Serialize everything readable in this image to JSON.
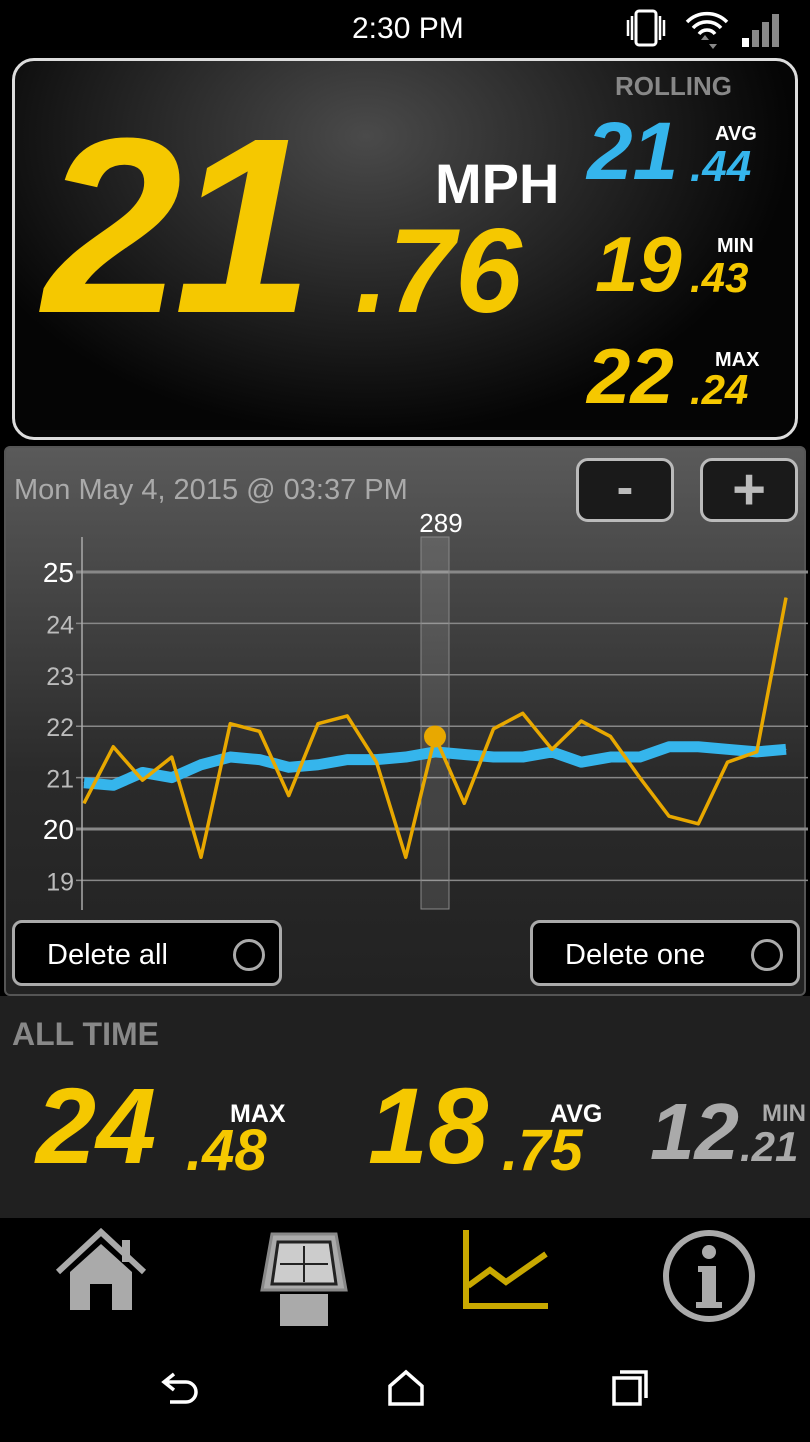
{
  "status_bar": {
    "time": "2:30 PM",
    "icons": [
      "vibrate-icon",
      "wifi-icon",
      "signal-icon"
    ]
  },
  "speed": {
    "whole": "21",
    "decimal": ".76",
    "unit": "MPH"
  },
  "rolling": {
    "title": "ROLLING",
    "avg": {
      "label": "AVG",
      "whole": "21",
      "decimal": ".44"
    },
    "min": {
      "label": "MIN",
      "whole": "19",
      "decimal": ".43"
    },
    "max": {
      "label": "MAX",
      "whole": "22",
      "decimal": ".24"
    }
  },
  "graph": {
    "timestamp": "Mon May 4, 2015 @ 03:37 PM",
    "zoom_out": "-",
    "zoom_in": "+",
    "delete_all": "Delete all",
    "delete_one": "Delete one"
  },
  "chart_data": {
    "type": "line",
    "ylim": [
      18.5,
      25.7
    ],
    "yticks": [
      "19",
      "20",
      "21",
      "22",
      "23",
      "24",
      "25"
    ],
    "grid": true,
    "selected": {
      "index": 12,
      "label": "289"
    },
    "series": [
      {
        "color": "#e8a800",
        "values": [
          20.5,
          21.6,
          20.95,
          21.4,
          19.45,
          22.05,
          21.9,
          20.65,
          22.05,
          22.2,
          21.3,
          19.45,
          21.8,
          20.5,
          21.95,
          22.25,
          21.55,
          22.1,
          21.8,
          21.0,
          20.25,
          20.1,
          21.3,
          21.5,
          24.5
        ]
      },
      {
        "color": "#35b5ec",
        "values": [
          20.9,
          20.85,
          21.1,
          21.0,
          21.25,
          21.4,
          21.35,
          21.2,
          21.25,
          21.35,
          21.35,
          21.4,
          21.5,
          21.45,
          21.4,
          21.4,
          21.5,
          21.3,
          21.4,
          21.4,
          21.6,
          21.6,
          21.55,
          21.5,
          21.55
        ]
      }
    ]
  },
  "all_time": {
    "title": "ALL TIME",
    "max": {
      "label": "MAX",
      "whole": "24",
      "decimal": ".48"
    },
    "avg": {
      "label": "AVG",
      "whole": "18",
      "decimal": ".75"
    },
    "min": {
      "label": "MIN",
      "whole": "12",
      "decimal": ".21"
    }
  },
  "colors": {
    "accent": "#f5c800",
    "rolling": "#35b5ec"
  },
  "nav": [
    "home-icon",
    "watch-icon",
    "graph-icon",
    "info-icon"
  ]
}
